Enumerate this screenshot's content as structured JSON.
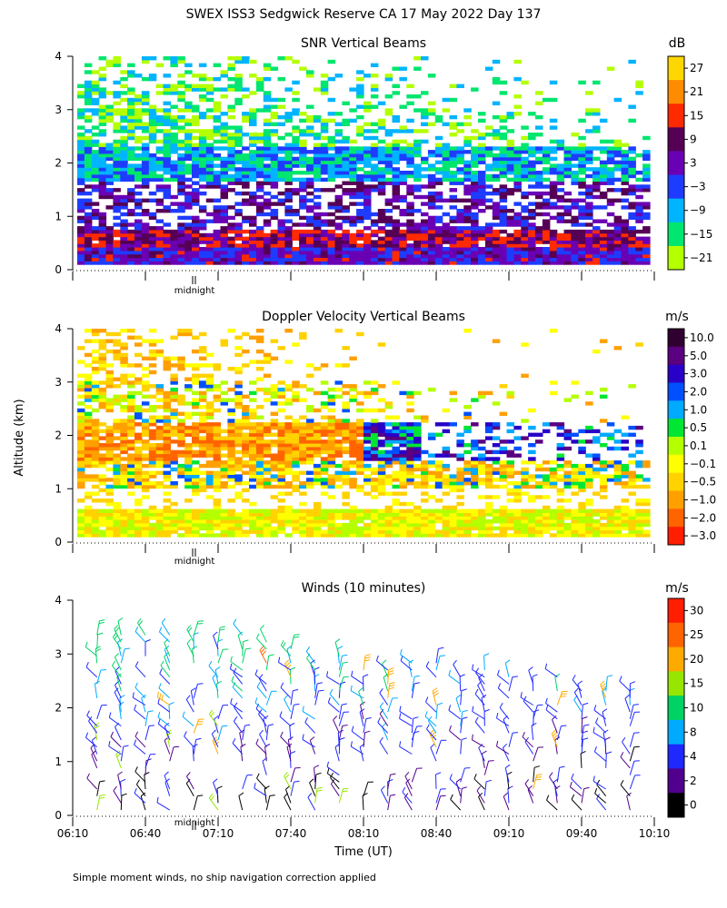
{
  "page_title": "SWEX ISS3 Sedgwick Reserve CA  17 May 2022 Day 137",
  "footer_note": "Simple moment winds, no ship navigation correction applied",
  "shared_y_label": "Altitude (km)",
  "midnight_label": "midnight",
  "chart_data": [
    {
      "type": "heatmap",
      "title": "SNR Vertical Beams",
      "ylabel": "Altitude (km)",
      "yticks": [
        "0",
        "1",
        "2",
        "3",
        "4"
      ],
      "ylim": [
        0,
        4
      ],
      "xlim": [
        "06:10",
        "10:10"
      ],
      "colorbar": {
        "unit": "dB",
        "labels": [
          "27",
          "21",
          "15",
          "9",
          "3",
          "−3",
          "−9",
          "−15",
          "−21"
        ],
        "colors": [
          "#ffd700",
          "#ff8c00",
          "#ff2a00",
          "#550055",
          "#6a00b4",
          "#1e3cff",
          "#00b4ff",
          "#00e66e",
          "#b4ff00"
        ]
      },
      "layers": [
        {
          "altitude_range": [
            0.1,
            0.4
          ],
          "snr_db": 9
        },
        {
          "altitude_range": [
            0.4,
            0.7
          ],
          "snr_db": 15
        },
        {
          "altitude_range": [
            0.7,
            1.6
          ],
          "snr_db": -3
        },
        {
          "altitude_range": [
            1.6,
            2.3
          ],
          "snr_db": -9
        },
        {
          "altitude_range": [
            2.3,
            4.0
          ],
          "snr_db": -18
        }
      ]
    },
    {
      "type": "heatmap",
      "title": "Doppler Velocity Vertical Beams",
      "ylabel": "Altitude (km)",
      "yticks": [
        "0",
        "1",
        "2",
        "3",
        "4"
      ],
      "ylim": [
        0,
        4
      ],
      "xlim": [
        "06:10",
        "10:10"
      ],
      "colorbar": {
        "unit": "m/s",
        "labels": [
          "10.0",
          "5.0",
          "3.0",
          "2.0",
          "1.0",
          "0.5",
          "0.1",
          "−0.1",
          "−0.5",
          "−1.0",
          "−2.0",
          "−3.0"
        ],
        "colors": [
          "#300030",
          "#5a0080",
          "#2800c8",
          "#0050ff",
          "#00aaff",
          "#00e632",
          "#b4ff00",
          "#ffff00",
          "#ffd200",
          "#ffa000",
          "#ff6400",
          "#ff1e00"
        ]
      },
      "layers": [
        {
          "altitude_range": [
            0.1,
            0.6
          ],
          "velocity_ms": -0.1
        },
        {
          "altitude_range": [
            1.2,
            2.2
          ],
          "velocity_ms": -1.0
        },
        {
          "altitude_range": [
            2.6,
            3.4
          ],
          "velocity_ms": -0.5
        }
      ]
    },
    {
      "type": "wind_barbs",
      "title": "Winds (10 minutes)",
      "xlabel": "Time (UT)",
      "ylabel": "Altitude (km)",
      "yticks": [
        "0",
        "1",
        "2",
        "3",
        "4"
      ],
      "ylim": [
        0,
        4
      ],
      "xticks": [
        "06:10",
        "06:40",
        "07:10",
        "07:40",
        "08:10",
        "08:40",
        "09:10",
        "09:40",
        "10:10"
      ],
      "xlim": [
        "06:10",
        "10:10"
      ],
      "colorbar": {
        "unit": "m/s",
        "labels": [
          "30",
          "25",
          "20",
          "15",
          "10",
          "8",
          "4",
          "2",
          "0"
        ],
        "colors": [
          "#ff1e00",
          "#ff6400",
          "#ffaa00",
          "#96e600",
          "#00d264",
          "#00aaff",
          "#1e28ff",
          "#50008c",
          "#000000"
        ]
      },
      "profile_times": [
        "06:20",
        "06:30",
        "06:40",
        "06:50",
        "07:00",
        "07:10",
        "07:20",
        "07:30",
        "07:40",
        "07:50",
        "08:00",
        "08:10",
        "08:20",
        "08:30",
        "08:40",
        "08:50",
        "09:00",
        "09:10",
        "09:20",
        "09:30",
        "09:40",
        "09:50",
        "10:00"
      ],
      "typical_speed_by_altitude_ms": [
        {
          "altitude_km": 0.5,
          "speed": 3
        },
        {
          "altitude_km": 1.5,
          "speed": 6
        },
        {
          "altitude_km": 2.5,
          "speed": 8
        },
        {
          "altitude_km": 3.5,
          "speed": 12
        }
      ]
    }
  ]
}
